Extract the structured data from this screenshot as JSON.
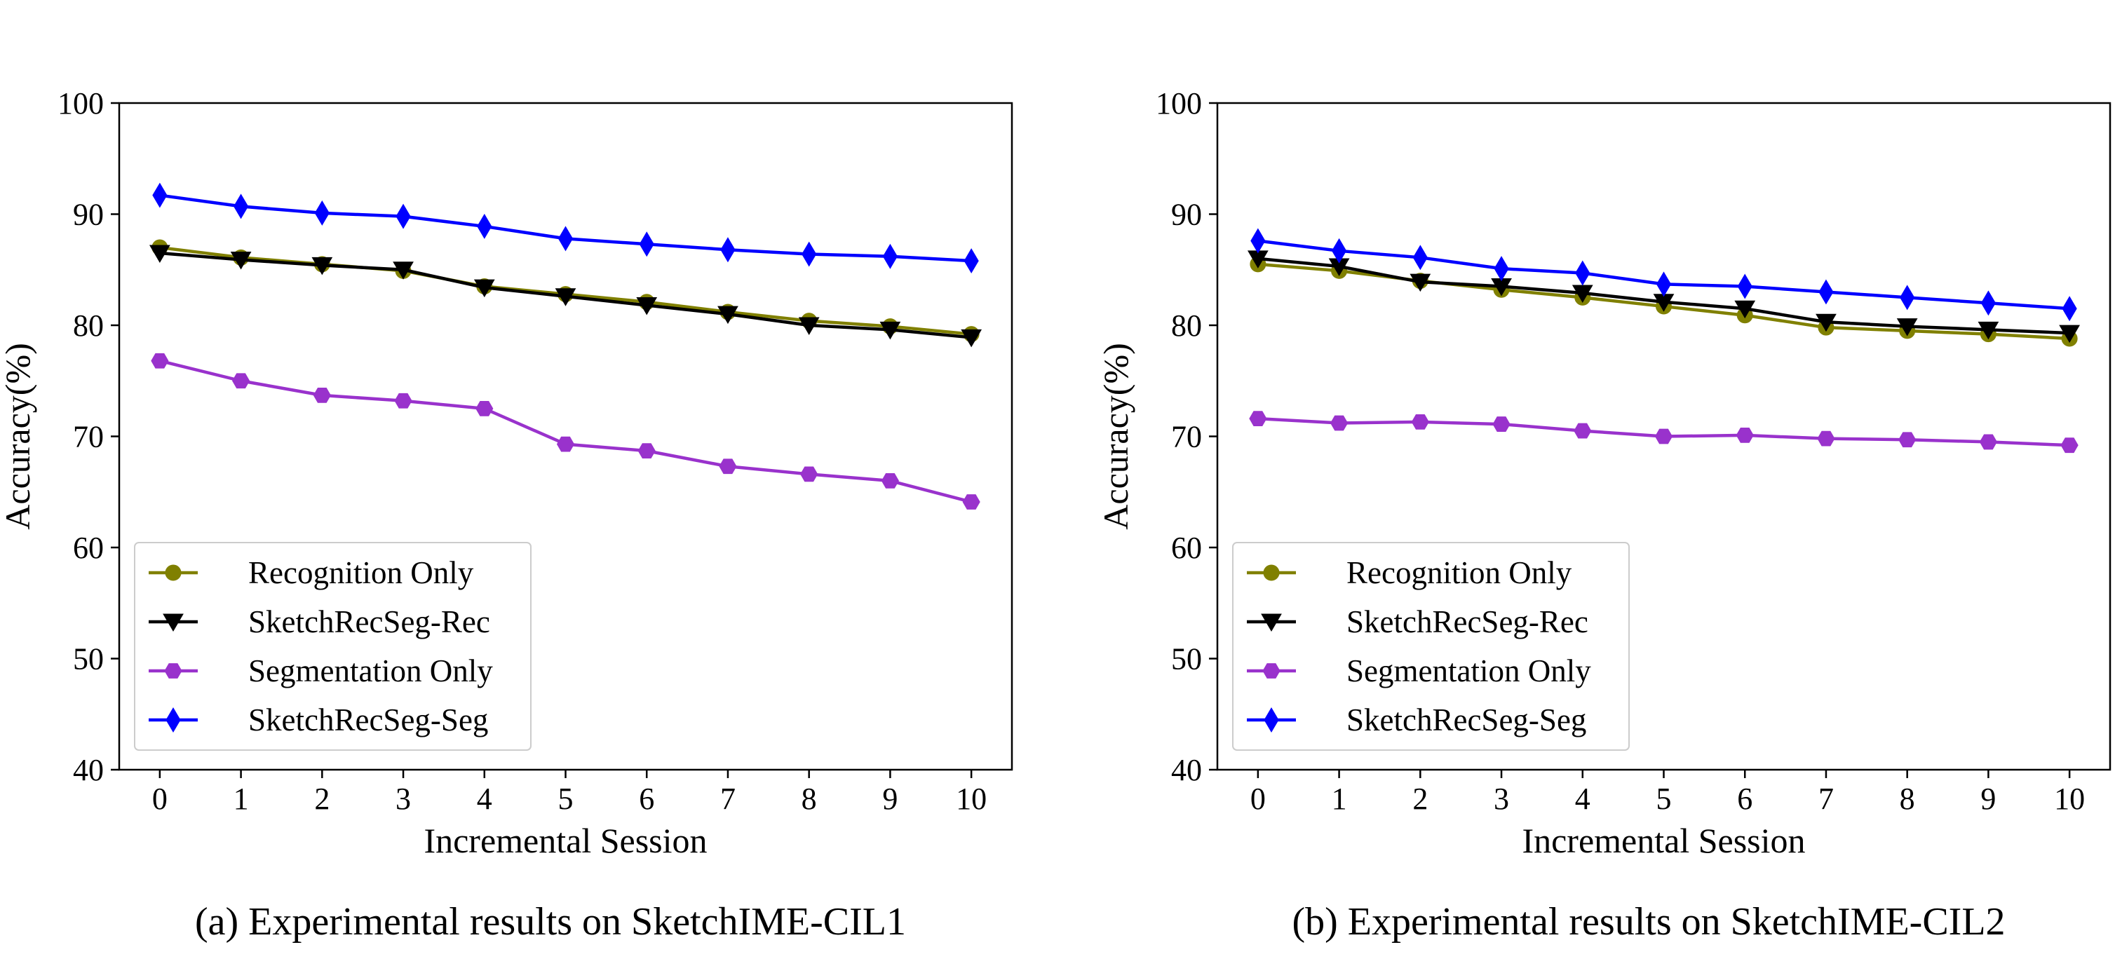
{
  "series_style": [
    {
      "name": "Recognition Only",
      "color": "#808000",
      "marker": "circle"
    },
    {
      "name": "SketchRecSeg-Rec",
      "color": "#000000",
      "marker": "triangle-down"
    },
    {
      "name": "Segmentation Only",
      "color": "#9932CC",
      "marker": "hexagon"
    },
    {
      "name": "SketchRecSeg-Seg",
      "color": "#0000FF",
      "marker": "diamond"
    }
  ],
  "chart_data": [
    {
      "type": "line",
      "caption": "(a) Experimental results on SketchIME-CIL1",
      "xlabel": "Incremental Session",
      "ylabel": "Accuracy(%)",
      "x": [
        0,
        1,
        2,
        3,
        4,
        5,
        6,
        7,
        8,
        9,
        10
      ],
      "xlim": [
        -0.5,
        10.5
      ],
      "ylim": [
        40,
        100
      ],
      "yticks": [
        40,
        50,
        60,
        70,
        80,
        90,
        100
      ],
      "grid": false,
      "legend_position": "lower-left",
      "series": [
        {
          "name": "Recognition Only",
          "values": [
            87.0,
            86.1,
            85.5,
            84.9,
            83.5,
            82.8,
            82.1,
            81.2,
            80.4,
            79.9,
            79.2
          ]
        },
        {
          "name": "SketchRecSeg-Rec",
          "values": [
            86.5,
            85.9,
            85.4,
            85.0,
            83.4,
            82.6,
            81.8,
            81.0,
            80.0,
            79.6,
            78.9
          ]
        },
        {
          "name": "Segmentation Only",
          "values": [
            76.8,
            75.0,
            73.7,
            73.2,
            72.5,
            69.3,
            68.7,
            67.3,
            66.6,
            66.0,
            64.1
          ]
        },
        {
          "name": "SketchRecSeg-Seg",
          "values": [
            91.7,
            90.7,
            90.1,
            89.8,
            88.9,
            87.8,
            87.3,
            86.8,
            86.4,
            86.2,
            85.8
          ]
        }
      ]
    },
    {
      "type": "line",
      "caption": "(b) Experimental results on SketchIME-CIL2",
      "xlabel": "Incremental Session",
      "ylabel": "Accuracy(%)",
      "x": [
        0,
        1,
        2,
        3,
        4,
        5,
        6,
        7,
        8,
        9,
        10
      ],
      "xlim": [
        -0.5,
        10.5
      ],
      "ylim": [
        40,
        100
      ],
      "yticks": [
        40,
        50,
        60,
        70,
        80,
        90,
        100
      ],
      "grid": false,
      "legend_position": "lower-left",
      "series": [
        {
          "name": "Recognition Only",
          "values": [
            85.5,
            84.9,
            84.0,
            83.2,
            82.5,
            81.7,
            80.9,
            79.8,
            79.5,
            79.2,
            78.8
          ]
        },
        {
          "name": "SketchRecSeg-Rec",
          "values": [
            86.0,
            85.3,
            83.9,
            83.5,
            82.9,
            82.1,
            81.5,
            80.3,
            79.9,
            79.6,
            79.3
          ]
        },
        {
          "name": "Segmentation Only",
          "values": [
            71.6,
            71.2,
            71.3,
            71.1,
            70.5,
            70.0,
            70.1,
            69.8,
            69.7,
            69.5,
            69.2
          ]
        },
        {
          "name": "SketchRecSeg-Seg",
          "values": [
            87.6,
            86.7,
            86.1,
            85.1,
            84.7,
            83.7,
            83.5,
            83.0,
            82.5,
            82.0,
            81.5
          ]
        }
      ]
    }
  ]
}
